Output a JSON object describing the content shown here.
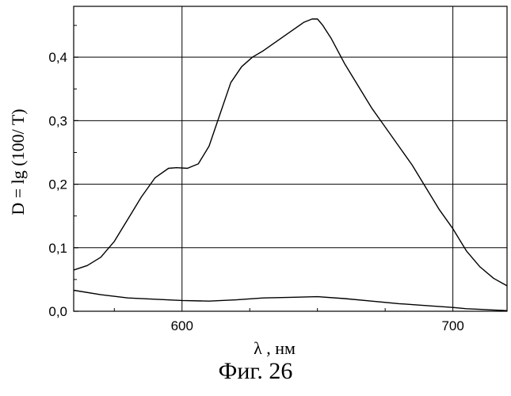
{
  "caption": "Фиг. 26",
  "chart_data": {
    "type": "line",
    "title": "",
    "xlabel": "λ , нм",
    "ylabel": "D = lg (100/ T)",
    "xlim": [
      560,
      720
    ],
    "ylim": [
      0,
      0.48
    ],
    "x_ticks": [
      {
        "value": 600,
        "label": "600"
      },
      {
        "value": 700,
        "label": "700"
      }
    ],
    "y_ticks": [
      {
        "value": 0.0,
        "label": "0,0"
      },
      {
        "value": 0.1,
        "label": "0,1"
      },
      {
        "value": 0.2,
        "label": "0,2"
      },
      {
        "value": 0.3,
        "label": "0,3"
      },
      {
        "value": 0.4,
        "label": "0,4"
      }
    ],
    "grid": true,
    "series": [
      {
        "x": [
          560,
          565,
          570,
          575,
          580,
          585,
          590,
          595,
          598,
          602,
          606,
          610,
          614,
          618,
          622,
          626,
          630,
          635,
          640,
          645,
          648,
          650,
          652,
          655,
          660,
          665,
          670,
          675,
          680,
          685,
          690,
          695,
          700,
          705,
          710,
          715,
          720
        ],
        "y": [
          0.065,
          0.072,
          0.085,
          0.11,
          0.145,
          0.18,
          0.21,
          0.225,
          0.226,
          0.225,
          0.232,
          0.26,
          0.31,
          0.36,
          0.385,
          0.4,
          0.41,
          0.425,
          0.44,
          0.455,
          0.46,
          0.46,
          0.45,
          0.43,
          0.39,
          0.355,
          0.32,
          0.29,
          0.26,
          0.23,
          0.195,
          0.16,
          0.13,
          0.095,
          0.07,
          0.052,
          0.04
        ]
      },
      {
        "x": [
          560,
          570,
          580,
          590,
          600,
          610,
          620,
          630,
          640,
          650,
          660,
          670,
          680,
          690,
          700,
          705,
          710,
          715,
          720
        ],
        "y": [
          0.033,
          0.026,
          0.021,
          0.019,
          0.017,
          0.016,
          0.018,
          0.021,
          0.022,
          0.023,
          0.02,
          0.016,
          0.012,
          0.009,
          0.006,
          0.004,
          0.003,
          0.002,
          0.001
        ]
      }
    ]
  }
}
